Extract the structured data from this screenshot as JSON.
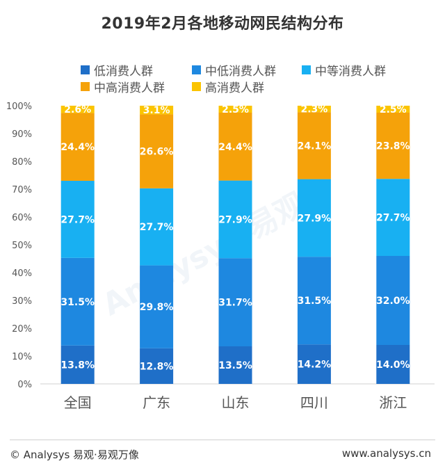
{
  "title": "2019年2月各地移动网民结构分布",
  "watermark": "Analysys 易观",
  "footer": {
    "left": "© Analysys 易观·易观万像",
    "right": "www.analysys.cn"
  },
  "chart_data": {
    "type": "bar",
    "stacked": true,
    "title": "2019年2月各地移动网民结构分布",
    "categories": [
      "全国",
      "广东",
      "山东",
      "四川",
      "浙江"
    ],
    "y_ticks": [
      "0%",
      "10%",
      "20%",
      "30%",
      "40%",
      "50%",
      "60%",
      "70%",
      "80%",
      "90%",
      "100%"
    ],
    "ylim": [
      0,
      100
    ],
    "legend_position": "top",
    "series": [
      {
        "name": "低消费人群",
        "color": "#1f6fc8",
        "values": [
          13.8,
          12.8,
          13.5,
          14.2,
          14.0
        ],
        "labels": [
          "13.8%",
          "12.8%",
          "13.5%",
          "14.2%",
          "14.0%"
        ]
      },
      {
        "name": "中低消费人群",
        "color": "#1e88e0",
        "values": [
          31.5,
          29.8,
          31.7,
          31.5,
          32.0
        ],
        "labels": [
          "31.5%",
          "29.8%",
          "31.7%",
          "31.5%",
          "32.0%"
        ]
      },
      {
        "name": "中等消费人群",
        "color": "#18b0f2",
        "values": [
          27.7,
          27.7,
          27.9,
          27.9,
          27.7
        ],
        "labels": [
          "27.7%",
          "27.7%",
          "27.9%",
          "27.9%",
          "27.7%"
        ]
      },
      {
        "name": "中高消费人群",
        "color": "#f5a20a",
        "values": [
          24.4,
          26.6,
          24.4,
          24.1,
          23.8
        ],
        "labels": [
          "24.4%",
          "26.6%",
          "24.4%",
          "24.1%",
          "23.8%"
        ]
      },
      {
        "name": "高消费人群",
        "color": "#fbc400",
        "values": [
          2.6,
          3.1,
          2.5,
          2.3,
          2.5
        ],
        "labels": [
          "2.6%",
          "3.1%",
          "2.5%",
          "2.3%",
          "2.5%"
        ]
      }
    ]
  }
}
